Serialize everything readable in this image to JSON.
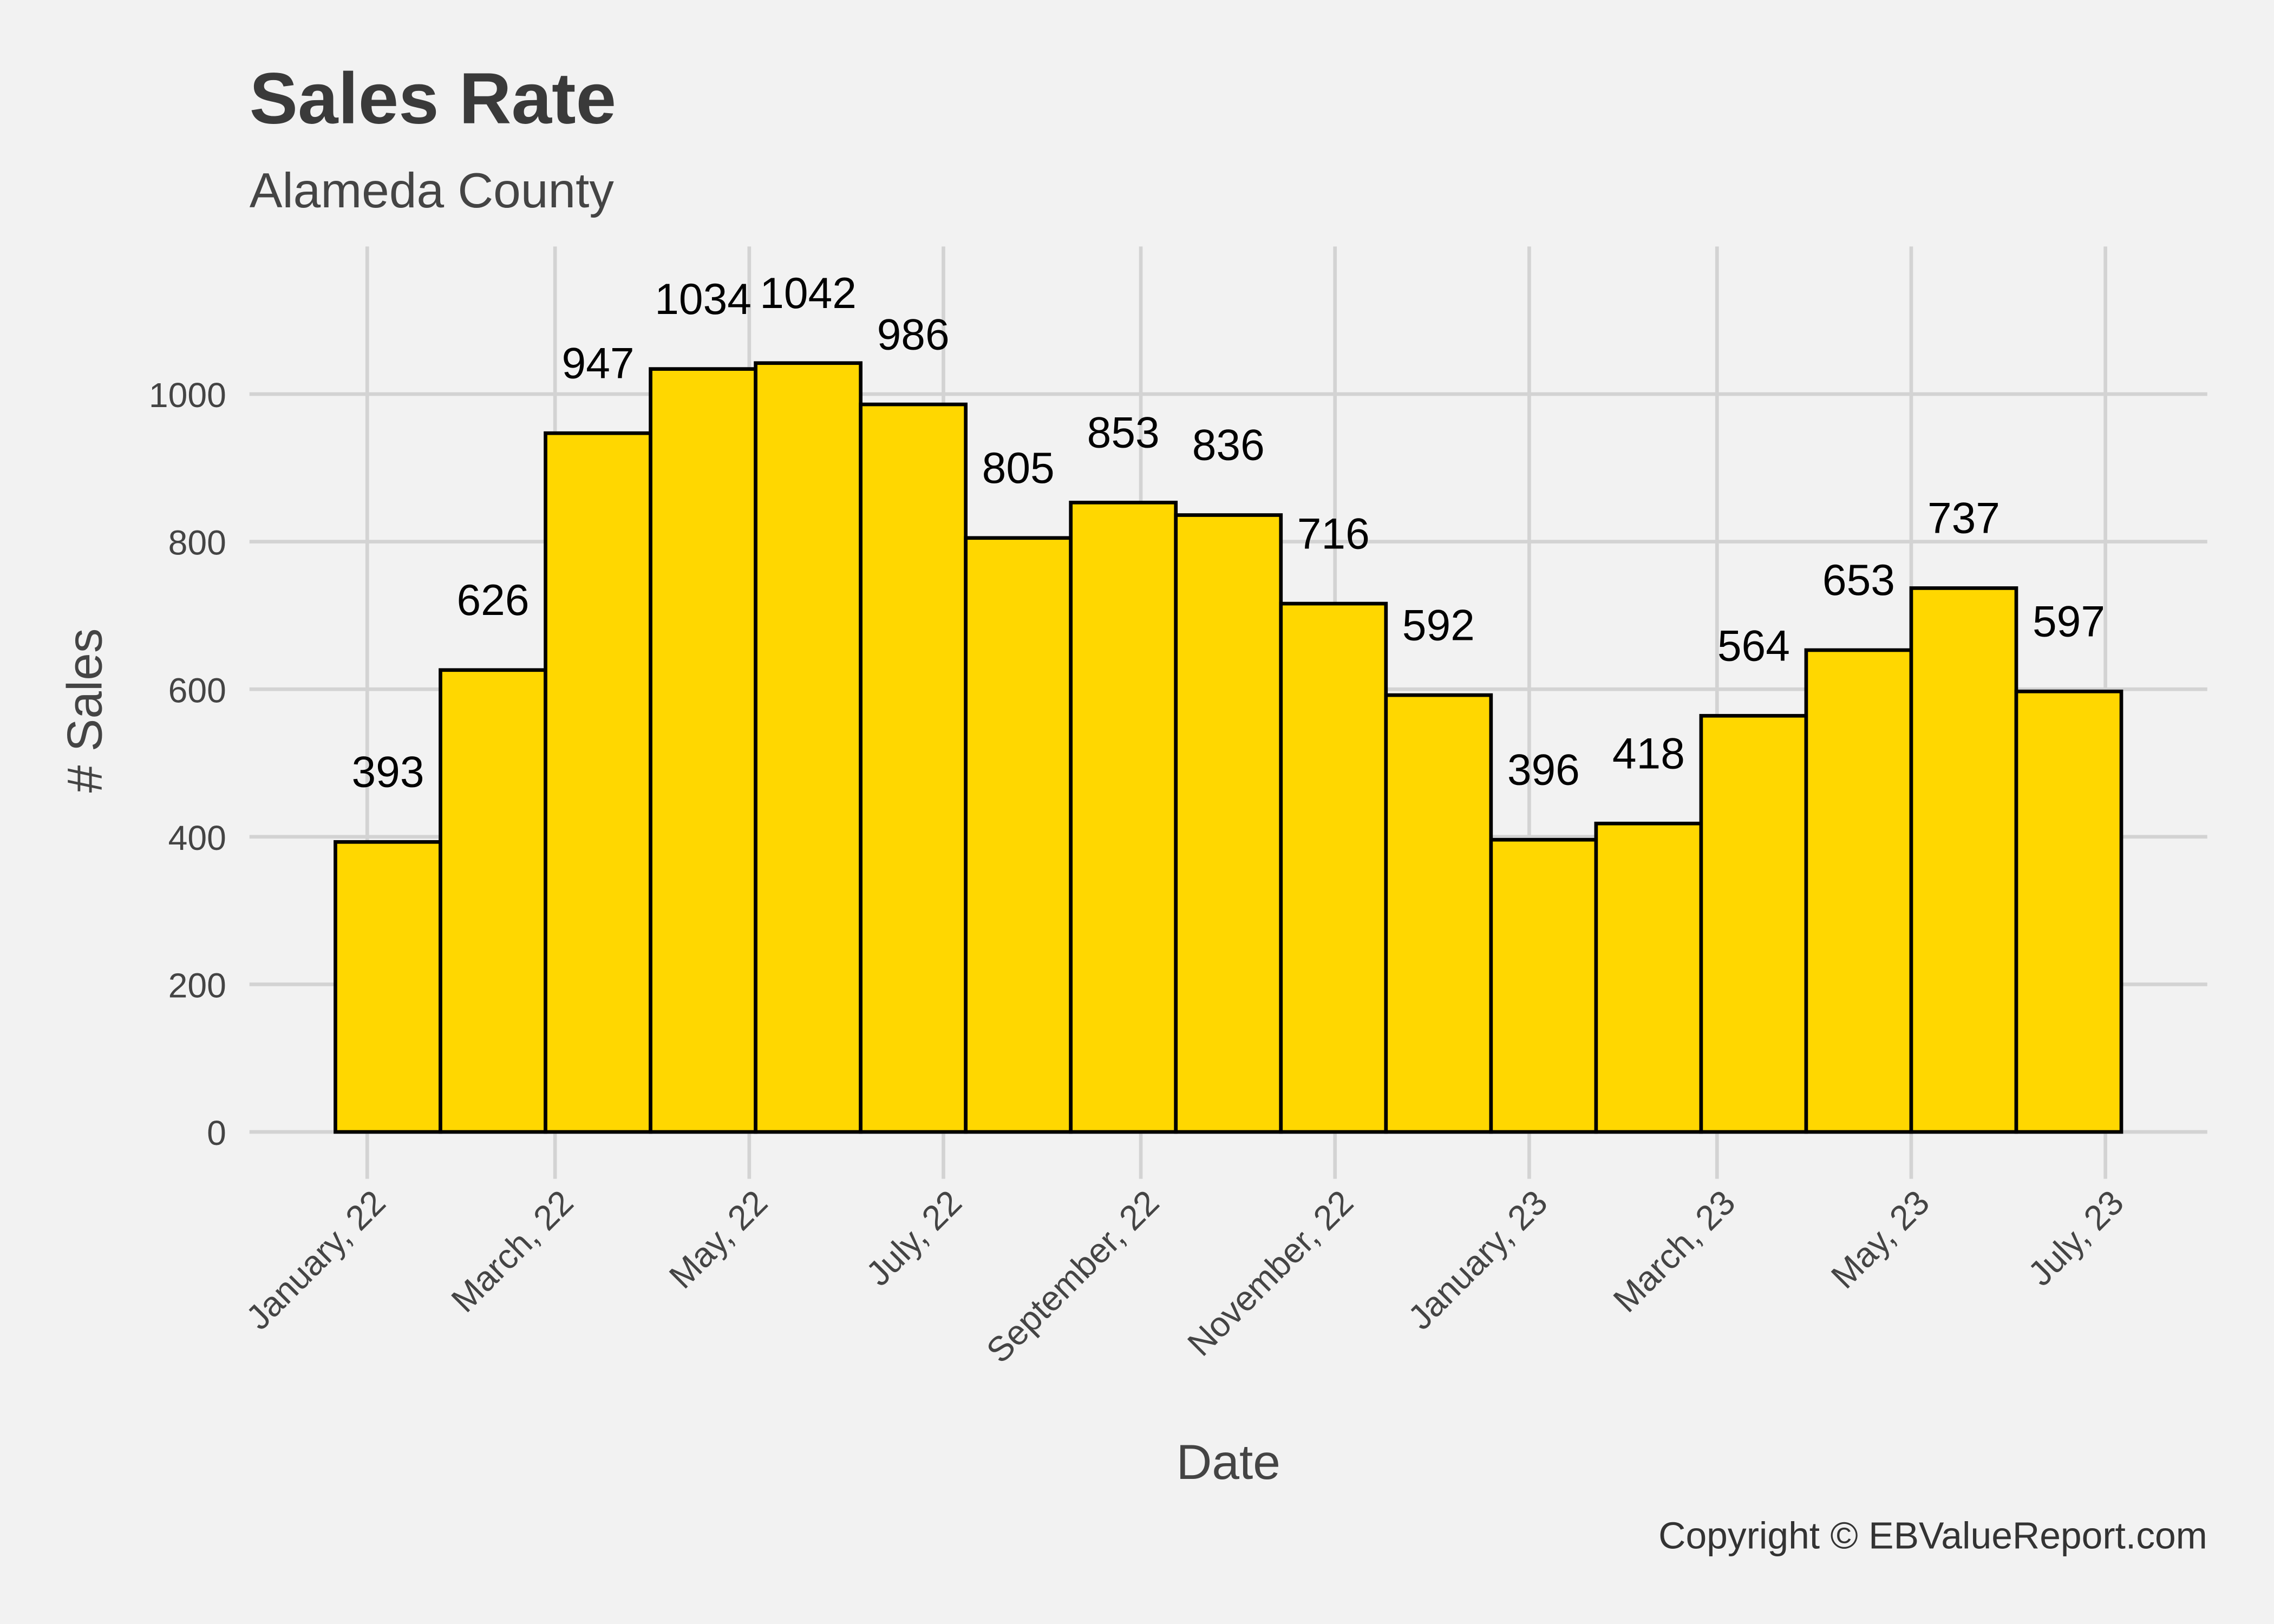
{
  "chart_data": {
    "type": "histogram",
    "title": "Sales Rate",
    "subtitle": "Alameda County",
    "x_label": "Date",
    "y_label": "# Sales",
    "caption": "Copyright  © EBValueReport.com",
    "bins": [
      -10,
      23,
      56,
      89,
      122,
      155,
      188,
      221,
      254,
      287,
      320,
      353,
      386,
      419,
      452,
      485,
      518,
      551
    ],
    "values": [
      393,
      626,
      947,
      1034,
      1042,
      986,
      805,
      853,
      836,
      716,
      592,
      396,
      418,
      564,
      653,
      737,
      597
    ],
    "color": "#ffd700",
    "edge_color": "#000000",
    "xlim": [
      -37,
      578
    ],
    "xticks": [
      {
        "value": 0,
        "label": "January, 22"
      },
      {
        "value": 59,
        "label": "March, 22"
      },
      {
        "value": 120,
        "label": "May, 22"
      },
      {
        "value": 181,
        "label": "July, 22"
      },
      {
        "value": 243,
        "label": "September, 22"
      },
      {
        "value": 304,
        "label": "November, 22"
      },
      {
        "value": 365,
        "label": "January, 23"
      },
      {
        "value": 424,
        "label": "March, 23"
      },
      {
        "value": 485,
        "label": "May, 23"
      },
      {
        "value": 546,
        "label": "July, 23"
      }
    ],
    "ylim": [
      -40,
      1200
    ],
    "yticks": [
      0,
      200,
      400,
      600,
      800,
      1000
    ],
    "grid": true
  }
}
